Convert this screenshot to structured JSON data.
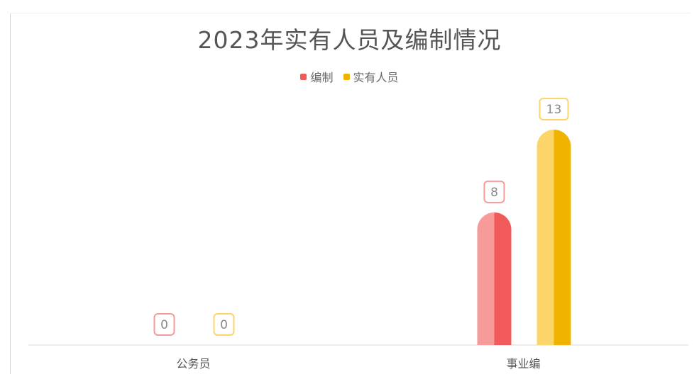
{
  "chart_data": {
    "type": "bar",
    "title": "2023年实有人员及编制情况",
    "categories": [
      "公务员",
      "事业编"
    ],
    "series": [
      {
        "name": "编制",
        "values": [
          0,
          8
        ],
        "color": "#f05a5a",
        "color_light": "#f79a9a"
      },
      {
        "name": "实有人员",
        "values": [
          0,
          13
        ],
        "color": "#f0b400",
        "color_light": "#fbd46a"
      }
    ],
    "data_labels": true,
    "grid": false,
    "legend_position": "top-center",
    "ylim": [
      0,
      13
    ],
    "xlabel": "",
    "ylabel": ""
  }
}
